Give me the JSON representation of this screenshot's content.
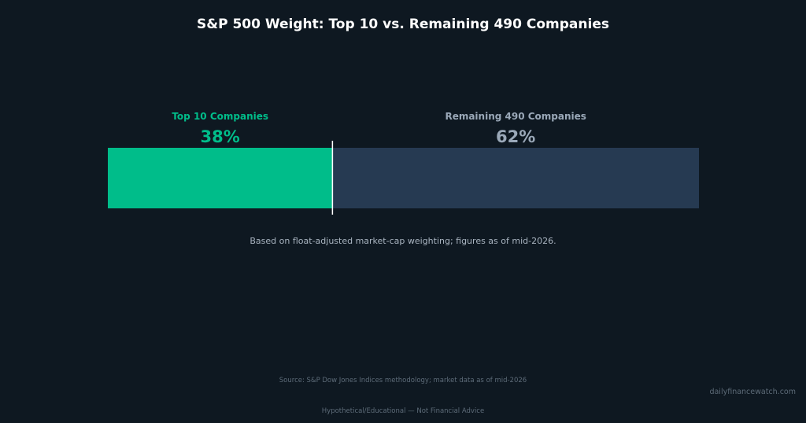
{
  "chart_data": {
    "type": "bar",
    "orientation": "horizontal-stacked",
    "title": "S&P 500 Weight: Top 10 vs. Remaining 490 Companies",
    "unit": "%",
    "series": [
      {
        "name": "Top 10 Companies",
        "value": 38,
        "label": "38%",
        "color": "#00bd8a"
      },
      {
        "name": "Remaining 490 Companies",
        "value": 62,
        "label": "62%",
        "color": "#263a52"
      }
    ],
    "total": 100,
    "annotation": "Based on float-adjusted market-cap weighting; figures as of mid-2026.",
    "grid": false,
    "legend": "none"
  },
  "colors": {
    "background": "#0e1821",
    "title": "#ffffff",
    "top10_label": "#00bd8a",
    "remaining_label": "#9aa8b8",
    "divider": "#ffffff",
    "annotation": "#a9b4c0",
    "footer": "#5d6b78"
  },
  "footer": {
    "source": "Source: S&P Dow Jones Indices methodology; market data as of mid-2026",
    "watermark": "dailyfinancewatch.com",
    "disclaimer": "Hypothetical/Educational — Not Financial Advice"
  }
}
